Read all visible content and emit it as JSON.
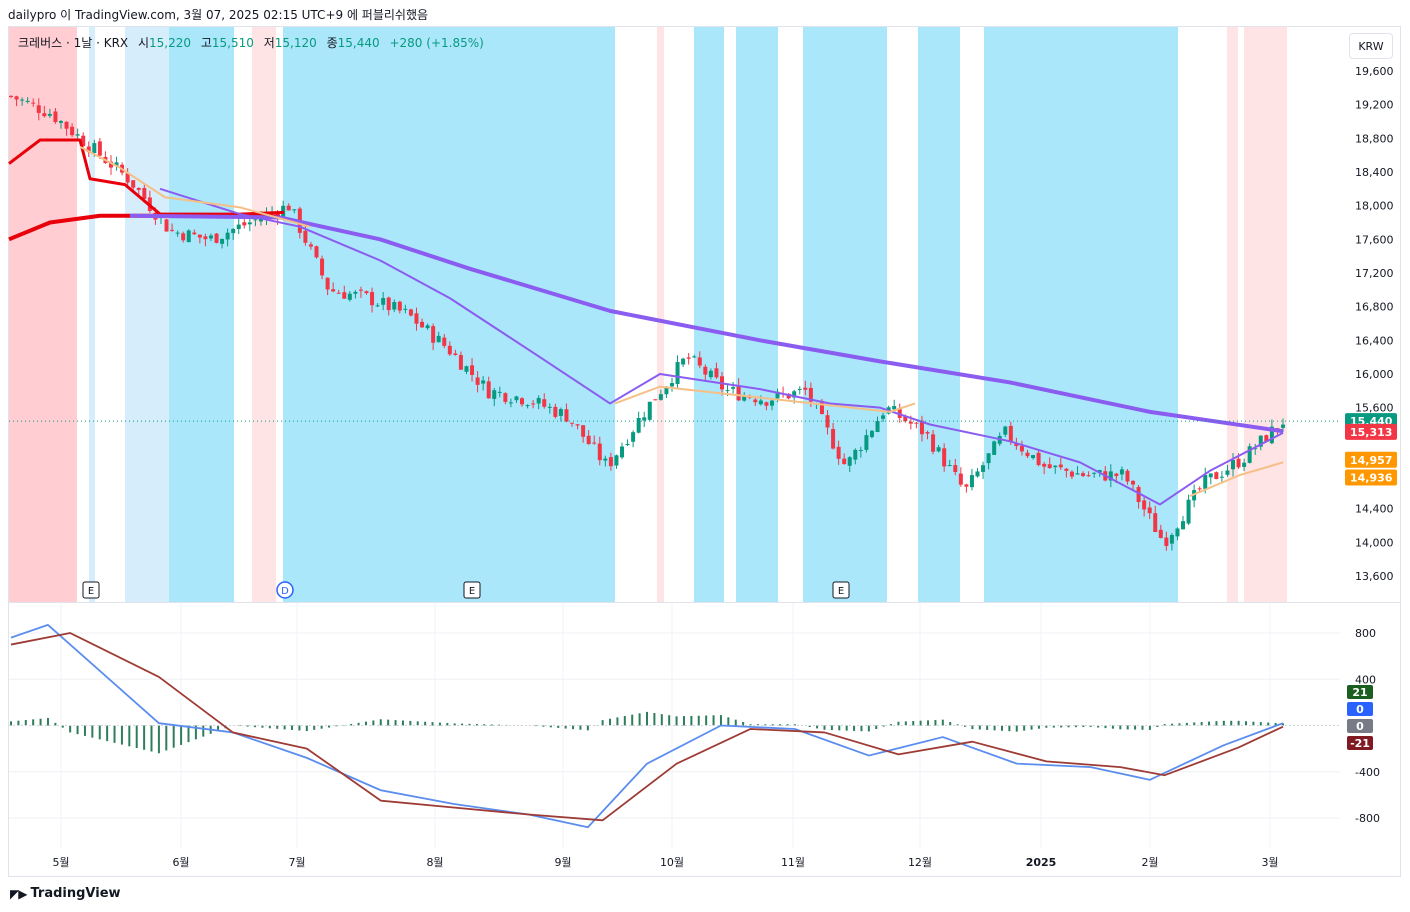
{
  "header": {
    "publisher_line": "dailypro 이 TradingView.com, 3월 07, 2025 02:15 UTC+9 에 퍼블리쉬했음"
  },
  "legend": {
    "symbol": "크레버스 · 1날 · KRX",
    "open_label": "시",
    "open": "15,220",
    "high_label": "고",
    "high": "15,510",
    "low_label": "저",
    "low": "15,120",
    "close_label": "종",
    "close": "15,440",
    "change": "+280 (+1.85%)"
  },
  "currency_button": "KRW",
  "footer": {
    "brand": "TradingView"
  },
  "colors": {
    "up": "#089981",
    "down": "#f23645",
    "band_red": "#ffcdd2",
    "band_pink": "#ffe4e6",
    "band_cyan": "#abe7fb",
    "band_lightblue": "#d6eefc",
    "ema_red": "#e8000b",
    "ema_orange": "#f5c087",
    "ma_purple": "#8a5cf0",
    "macd_line": "#5b8def",
    "signal_line": "#9e3b35",
    "hist": "#2e7d5b"
  },
  "chart_data": [
    {
      "type": "candlestick",
      "title": "",
      "price_axis": {
        "ticks": [
          "19,600",
          "19,200",
          "18,800",
          "18,400",
          "18,000",
          "17,600",
          "17,200",
          "16,800",
          "16,400",
          "16,000",
          "15,600",
          "14,400",
          "14,000",
          "13,600"
        ],
        "range": [
          13400,
          19900
        ]
      },
      "time_axis": {
        "ticks": [
          "5월",
          "6월",
          "7월",
          "8월",
          "9월",
          "10월",
          "11월",
          "12월",
          "2025",
          "2월",
          "3월"
        ]
      },
      "price_labels": [
        {
          "value": 15440,
          "text": "15,440",
          "color": "#089981"
        },
        {
          "value": 15313,
          "text": "15,313",
          "color": "#f23645"
        },
        {
          "value": 14957,
          "text": "14,957",
          "color": "#ff9800"
        },
        {
          "value": 14936,
          "text": "14,936",
          "color": "#ff9800"
        }
      ],
      "event_markers": [
        {
          "label": "E",
          "date": "5월 초"
        },
        {
          "label": "D",
          "date": "6월 말"
        },
        {
          "label": "E",
          "date": "8월"
        },
        {
          "label": "E",
          "date": "11월"
        }
      ],
      "close_path": [
        [
          "4월 중",
          19300
        ],
        [
          "4월 말",
          19100
        ],
        [
          "5월 초",
          18700
        ],
        [
          "5월 중",
          18300
        ],
        [
          "5월 말",
          17700
        ],
        [
          "6월 초",
          17600
        ],
        [
          "6월 중",
          17800
        ],
        [
          "6월 말",
          18000
        ],
        [
          "7월 초",
          17000
        ],
        [
          "7월 중",
          16900
        ],
        [
          "7월 말",
          16700
        ],
        [
          "8월 초",
          16300
        ],
        [
          "8월 중",
          15800
        ],
        [
          "8월 말",
          15700
        ],
        [
          "9월 초",
          15500
        ],
        [
          "9월 중",
          14900
        ],
        [
          "9월 말",
          15600
        ],
        [
          "10월 초",
          16200
        ],
        [
          "10월 중",
          15800
        ],
        [
          "10월 말",
          15700
        ],
        [
          "11월 초",
          15800
        ],
        [
          "11월 중",
          14900
        ],
        [
          "11월 말",
          15600
        ],
        [
          "12월 초",
          15300
        ],
        [
          "12월 중",
          14600
        ],
        [
          "12월 말",
          15300
        ],
        [
          "2025 1월 초",
          14900
        ],
        [
          "1월 중",
          14800
        ],
        [
          "1월 말",
          14800
        ],
        [
          "2월 초",
          14000
        ],
        [
          "2월 중",
          14700
        ],
        [
          "2월 말",
          15000
        ],
        [
          "3월 초",
          15440
        ]
      ],
      "moving_averages": [
        {
          "name": "",
          "color": "#e8000b",
          "values_start_end": [
            18500,
            18200
          ]
        },
        {
          "name": "",
          "color": "#8a5cf0",
          "values_start_end": [
            17900,
            15350
          ]
        },
        {
          "name": "",
          "color": "#f5c087",
          "values_start_end": [
            18700,
            14950
          ]
        }
      ],
      "background_regimes": [
        "red",
        "cyan",
        "pink",
        "cyan",
        "pink"
      ]
    },
    {
      "type": "line",
      "title": "",
      "y_axis": {
        "ticks": [
          "800",
          "400",
          "-400",
          "-800"
        ],
        "range": [
          -1000,
          1000
        ]
      },
      "series": [
        {
          "name": "",
          "color": "#5b8def",
          "points": [
            [
              0,
              760
            ],
            [
              5,
              870
            ],
            [
              20,
              20
            ],
            [
              30,
              -60
            ],
            [
              40,
              -280
            ],
            [
              50,
              -560
            ],
            [
              60,
              -680
            ],
            [
              70,
              -770
            ],
            [
              78,
              -880
            ],
            [
              86,
              -330
            ],
            [
              96,
              0
            ],
            [
              106,
              -30
            ],
            [
              116,
              -260
            ],
            [
              126,
              -100
            ],
            [
              136,
              -330
            ],
            [
              146,
              -360
            ],
            [
              154,
              -470
            ],
            [
              164,
              -170
            ],
            [
              172,
              20
            ]
          ]
        },
        {
          "name": "",
          "color": "#9e3b35",
          "points": [
            [
              0,
              700
            ],
            [
              8,
              800
            ],
            [
              20,
              420
            ],
            [
              30,
              -60
            ],
            [
              40,
              -200
            ],
            [
              50,
              -650
            ],
            [
              60,
              -710
            ],
            [
              70,
              -770
            ],
            [
              80,
              -820
            ],
            [
              90,
              -330
            ],
            [
              100,
              -30
            ],
            [
              110,
              -60
            ],
            [
              120,
              -250
            ],
            [
              130,
              -140
            ],
            [
              140,
              -310
            ],
            [
              150,
              -360
            ],
            [
              156,
              -430
            ],
            [
              166,
              -190
            ],
            [
              172,
              -10
            ]
          ]
        }
      ],
      "value_labels": [
        {
          "text": "21",
          "color": "#1b5e20"
        },
        {
          "text": "0",
          "color": "#2962ff"
        },
        {
          "text": "0",
          "color": "#787b86"
        },
        {
          "text": "-21",
          "color": "#801922"
        }
      ]
    }
  ]
}
